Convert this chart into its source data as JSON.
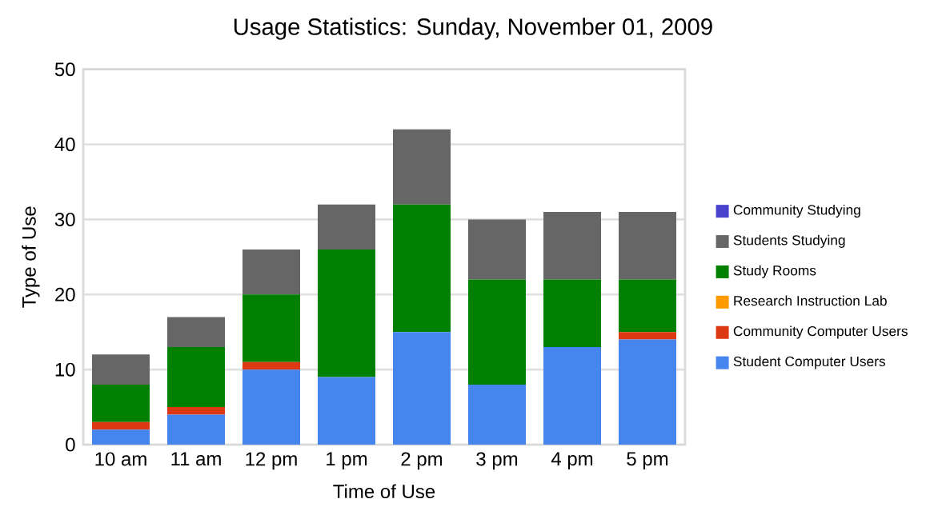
{
  "chart_data": {
    "type": "bar",
    "title": "Usage Statistics: Sunday, November 01, 2009",
    "xlabel": "Time of Use",
    "ylabel": "Type of Use",
    "categories": [
      "10 am",
      "11 am",
      "12 pm",
      "1 pm",
      "2 pm",
      "3 pm",
      "4 pm",
      "5 pm"
    ],
    "stacked": true,
    "ylim": [
      0,
      50
    ],
    "yticks": [
      0,
      10,
      20,
      30,
      40,
      50
    ],
    "grid": "y",
    "legend": "right",
    "series": [
      {
        "name": "Student Computer Users",
        "color": "#4684ee",
        "values": [
          2,
          4,
          10,
          9,
          15,
          8,
          13,
          14
        ]
      },
      {
        "name": "Community Computer Users",
        "color": "#dc3912",
        "values": [
          1,
          1,
          1,
          0,
          0,
          0,
          0,
          1
        ]
      },
      {
        "name": "Research Instruction Lab",
        "color": "#ff9900",
        "values": [
          0,
          0,
          0,
          0,
          0,
          0,
          0,
          0
        ]
      },
      {
        "name": "Study Rooms",
        "color": "#008000",
        "values": [
          5,
          8,
          9,
          17,
          17,
          14,
          9,
          7
        ]
      },
      {
        "name": "Students Studying",
        "color": "#666666",
        "values": [
          4,
          4,
          6,
          6,
          10,
          8,
          9,
          9
        ]
      },
      {
        "name": "Community Studying",
        "color": "#4942cc",
        "values": [
          0,
          0,
          0,
          0,
          0,
          0,
          0,
          0
        ]
      }
    ]
  }
}
